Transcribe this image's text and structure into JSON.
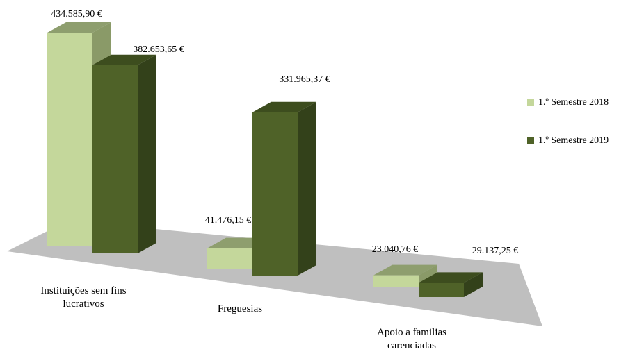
{
  "chart_data": {
    "type": "bar3d",
    "categories": [
      "Instituições sem fins lucrativos",
      "Freguesias",
      "Apoio a familias carenciadas"
    ],
    "series": [
      {
        "name": "1.º Semestre 2018",
        "color": "#c4d79b",
        "top_color": "#8e9e6e",
        "side_color": "#8a9a68",
        "values": [
          434585.9,
          41476.15,
          23040.76
        ],
        "value_labels": [
          "434.585,90 €",
          "41.476,15 €",
          "23.040,76 €"
        ]
      },
      {
        "name": "1.º Semestre 2019",
        "color": "#4f6228",
        "top_color": "#3d4d1e",
        "side_color": "#33411a",
        "values": [
          382653.65,
          331965.37,
          29137.25
        ],
        "value_labels": [
          "382.653,65 €",
          "331.965,37 €",
          "29.137,25 €"
        ]
      }
    ],
    "legend": "right"
  }
}
